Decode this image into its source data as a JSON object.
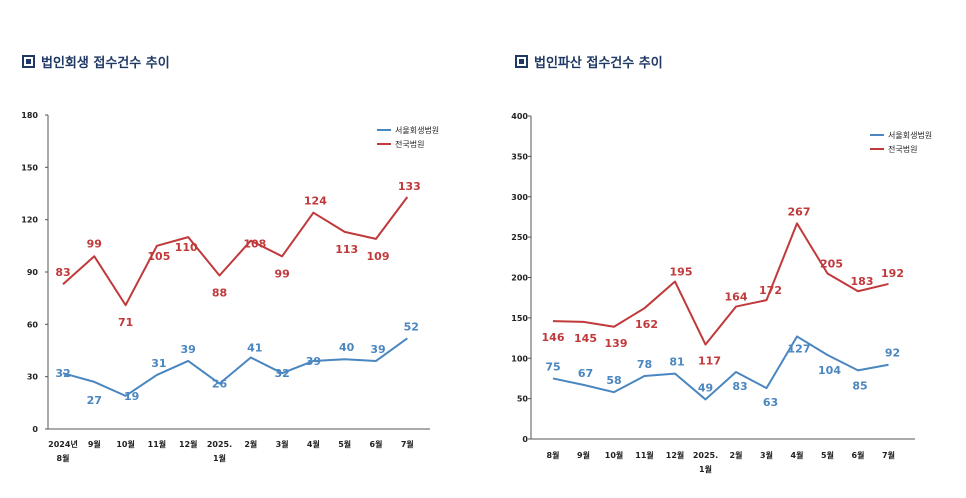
{
  "colors": {
    "seoul": "#4a86c0",
    "national": "#c0393b",
    "title": "#1f3864"
  },
  "chart_data": [
    {
      "type": "line",
      "title": "법인회생 접수건수 추이",
      "title_icon": "square-icon",
      "categories": [
        [
          "2024년",
          "8월"
        ],
        [
          "9월"
        ],
        [
          "10월"
        ],
        [
          "11월"
        ],
        [
          "12월"
        ],
        [
          "2025.",
          "1월"
        ],
        [
          "2월"
        ],
        [
          "3월"
        ],
        [
          "4월"
        ],
        [
          "5월"
        ],
        [
          "6월"
        ],
        [
          "7월"
        ]
      ],
      "series": [
        {
          "name": "서울회생법원",
          "values": [
            32,
            27,
            19,
            31,
            39,
            26,
            41,
            32,
            39,
            40,
            39,
            52
          ]
        },
        {
          "name": "전국법원",
          "values": [
            83,
            99,
            71,
            105,
            110,
            88,
            108,
            99,
            124,
            113,
            109,
            133
          ]
        }
      ],
      "yticks": [
        "0",
        "30",
        "60",
        "90",
        "120",
        "150",
        "180"
      ],
      "ylim": [
        0,
        180
      ],
      "legend": "top-right",
      "grid": false
    },
    {
      "type": "line",
      "title": "법인파산 접수건수 추이",
      "title_icon": "square-icon",
      "categories": [
        [
          "8월"
        ],
        [
          "9월"
        ],
        [
          "10월"
        ],
        [
          "11월"
        ],
        [
          "12월"
        ],
        [
          "2025.",
          "1월"
        ],
        [
          "2월"
        ],
        [
          "3월"
        ],
        [
          "4월"
        ],
        [
          "5월"
        ],
        [
          "6월"
        ],
        [
          "7월"
        ]
      ],
      "series": [
        {
          "name": "서울회생법원",
          "values": [
            75,
            67,
            58,
            78,
            81,
            49,
            83,
            63,
            127,
            104,
            85,
            92
          ]
        },
        {
          "name": "전국법원",
          "values": [
            146,
            145,
            139,
            162,
            195,
            117,
            164,
            172,
            267,
            205,
            183,
            192
          ]
        }
      ],
      "yticks": [
        "0",
        "50",
        "100",
        "150",
        "200",
        "250",
        "300",
        "350",
        "400"
      ],
      "ylim": [
        0,
        400
      ],
      "legend": "top-right",
      "grid": false
    }
  ]
}
